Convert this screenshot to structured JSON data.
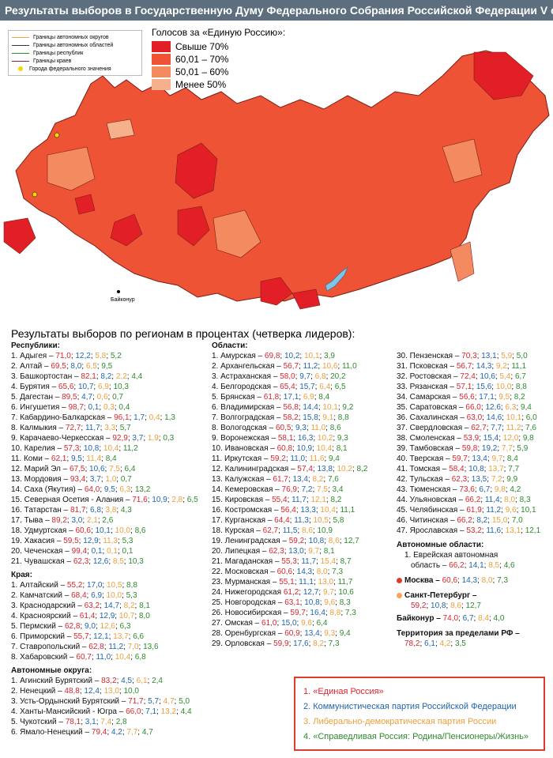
{
  "title": "Результаты выборов в Государственную Думу Федерального Собрания Российской Федерации V созыва",
  "legend_borders": [
    {
      "label": "Границы автономных округов",
      "color": "#f4a04a"
    },
    {
      "label": "Границы автономных областей",
      "color": "#333333"
    },
    {
      "label": "Границы республик",
      "color": "#2e8b2e"
    },
    {
      "label": "Границы краев",
      "color": "#8a2040"
    },
    {
      "label": "Города федерального значения",
      "color": "#f2d70a"
    }
  ],
  "vote_legend": {
    "title": "Голосов за «Единую Россию»:",
    "items": [
      {
        "label": "Свыше 70%",
        "color": "#e21f26"
      },
      {
        "label": "60,01 – 70%",
        "color": "#ee5335"
      },
      {
        "label": "50,01 – 60%",
        "color": "#f48a60"
      },
      {
        "label": "Менее 50%",
        "color": "#f6b08b"
      }
    ]
  },
  "map_labels": {
    "baikonur": "Байконур"
  },
  "results_heading": "Результаты выборов по регионам в процентах (четверка лидеров):",
  "republics": {
    "header": "Республики:",
    "rows": [
      {
        "name": "1. Адыгея –",
        "v": [
          "71,0",
          "12,2",
          "5,8",
          "5,2"
        ]
      },
      {
        "name": "2. Алтай –",
        "v": [
          "69,5",
          "8,0",
          "6,5",
          "9,5"
        ]
      },
      {
        "name": "3. Башкортостан –",
        "v": [
          "82,1",
          "8,2",
          "2,2",
          "4,4"
        ]
      },
      {
        "name": "4. Бурятия –",
        "v": [
          "65,6",
          "10,7",
          "6,9",
          "10,3"
        ]
      },
      {
        "name": "5. Дагестан –",
        "v": [
          "89,5",
          "4,7",
          "0,6",
          "0,7"
        ]
      },
      {
        "name": "6. Ингушетия –",
        "v": [
          "98,7",
          "0,1",
          "0,3",
          "0,4"
        ]
      },
      {
        "name": "7. Кабардино-Балкарская –",
        "v": [
          "96,1",
          "1,7",
          "0,4",
          "1,3"
        ]
      },
      {
        "name": "8. Калмыкия –",
        "v": [
          "72,7",
          "11,7",
          "3,3",
          "5,7"
        ]
      },
      {
        "name": "9. Карачаево-Черкесская –",
        "v": [
          "92,9",
          "3,7",
          "1,9",
          "0,3"
        ]
      },
      {
        "name": "10. Карелия –",
        "v": [
          "57,3",
          "10,8",
          "10,4",
          "11,2"
        ]
      },
      {
        "name": "11. Коми –",
        "v": [
          "62,1",
          "9,5",
          "11,4",
          "8,4"
        ]
      },
      {
        "name": "12. Марий Эл –",
        "v": [
          "67,5",
          "10,6",
          "7,5",
          "6,4"
        ]
      },
      {
        "name": "13. Мордовия –",
        "v": [
          "93,4",
          "3,7",
          "1,0",
          "0,7"
        ]
      },
      {
        "name": "14. Саха (Якутия) –",
        "v": [
          "64,0",
          "9,5",
          "6,3",
          "13,2"
        ]
      },
      {
        "name": "15. Северная Осетия - Алания –",
        "v": [
          "71,6",
          "10,9",
          "2,8",
          "6,5"
        ]
      },
      {
        "name": "16. Татарстан –",
        "v": [
          "81,7",
          "6,8",
          "3,8",
          "4,3"
        ]
      },
      {
        "name": "17. Тыва –",
        "v": [
          "89,2",
          "3,0",
          "2,1",
          "2,6"
        ]
      },
      {
        "name": "18. Удмуртская –",
        "v": [
          "60,6",
          "10,1",
          "10,0",
          "8,6"
        ]
      },
      {
        "name": "19. Хакасия –",
        "v": [
          "59,5",
          "12,9",
          "11,3",
          "5,3"
        ]
      },
      {
        "name": "20. Чеченская –",
        "v": [
          "99,4",
          "0,1",
          "0,1",
          "0,1"
        ]
      },
      {
        "name": "21. Чувашская –",
        "v": [
          "62,3",
          "12,6",
          "8,5",
          "10,3"
        ]
      }
    ]
  },
  "krai": {
    "header": "Края:",
    "rows": [
      {
        "name": "1. Алтайский –",
        "v": [
          "55,2",
          "17,0",
          "10,5",
          "8,8"
        ]
      },
      {
        "name": "2. Камчатский –",
        "v": [
          "68,4",
          "6,9",
          "10,0",
          "5,3"
        ]
      },
      {
        "name": "3. Краснодарский –",
        "v": [
          "63,2",
          "14,7",
          "8,2",
          "8,1"
        ]
      },
      {
        "name": "4. Красноярский –",
        "v": [
          "61,4",
          "12,9",
          "10,7",
          "8,0"
        ]
      },
      {
        "name": "5. Пермский –",
        "v": [
          "62,8",
          "9,0",
          "12,6",
          "6,3"
        ]
      },
      {
        "name": "6. Приморский –",
        "v": [
          "55,7",
          "12,1",
          "13,7",
          "6,6"
        ]
      },
      {
        "name": "7. Ставропольский –",
        "v": [
          "62,8",
          "11,2",
          "7,0",
          "13,6"
        ]
      },
      {
        "name": "8. Хабаровский –",
        "v": [
          "60,7",
          "11,0",
          "10,4",
          "6,8"
        ]
      }
    ]
  },
  "okrugs": {
    "header": "Автономные округа:",
    "rows": [
      {
        "name": "1. Агинский Бурятский –",
        "v": [
          "83,2",
          "4,5",
          "6,1",
          "2,4"
        ]
      },
      {
        "name": "2. Ненецкий –",
        "v": [
          "48,8",
          "12,4",
          "13,0",
          "10,0"
        ]
      },
      {
        "name": "3. Усть-Ордынский Бурятский –",
        "v": [
          "71,7",
          "5,7",
          "4,7",
          "5,0"
        ]
      },
      {
        "name": "4. Ханты-Мансийский - Югра –",
        "v": [
          "66,0",
          "7,1",
          "13,2",
          "4,4"
        ]
      },
      {
        "name": "5. Чукотский –",
        "v": [
          "78,1",
          "3,1",
          "7,4",
          "2,8"
        ]
      },
      {
        "name": "6. Ямало-Ненецкий –",
        "v": [
          "79,4",
          "4,2",
          "7,7",
          "4,7"
        ]
      }
    ]
  },
  "oblasts_a": {
    "header": "Области:",
    "rows": [
      {
        "name": "1. Амурская –",
        "v": [
          "69,8",
          "10,2",
          "10,1",
          "3,9"
        ]
      },
      {
        "name": "2. Архангельская –",
        "v": [
          "56,7",
          "11,2",
          "10,6",
          "11,0"
        ]
      },
      {
        "name": "3. Астраханская –",
        "v": [
          "58,0",
          "9,7",
          "6,8",
          "20,2"
        ]
      },
      {
        "name": "4. Белгородская –",
        "v": [
          "65,4",
          "15,7",
          "6,4",
          "6,5"
        ]
      },
      {
        "name": "5. Брянская –",
        "v": [
          "61,8",
          "17,1",
          "6,9",
          "8,4"
        ]
      },
      {
        "name": "6. Владимирская –",
        "v": [
          "56,8",
          "14,4",
          "10,1",
          "9,2"
        ]
      },
      {
        "name": "7. Волгоградская –",
        "v": [
          "58,2",
          "15,8",
          "9,1",
          "8,8"
        ]
      },
      {
        "name": "8. Вологодская –",
        "v": [
          "60,5",
          "9,3",
          "11,0",
          "8,6"
        ]
      },
      {
        "name": "9. Воронежская –",
        "v": [
          "58,1",
          "16,3",
          "10,2",
          "9,3"
        ]
      },
      {
        "name": "10. Ивановская –",
        "v": [
          "60,8",
          "10,9",
          "10,4",
          "8,1"
        ]
      },
      {
        "name": "11. Иркутская –",
        "v": [
          "59,2",
          "11,0",
          "11,6",
          "9,4"
        ]
      },
      {
        "name": "12. Калининградская –",
        "v": [
          "57,4",
          "13,8",
          "10,2",
          "8,2"
        ]
      },
      {
        "name": "13. Калужская –",
        "v": [
          "61,7",
          "13,4",
          "8,2",
          "7,6"
        ]
      },
      {
        "name": "14. Кемеровская –",
        "v": [
          "76,9",
          "7,2",
          "7,5",
          "3,4"
        ]
      },
      {
        "name": "15. Кировская –",
        "v": [
          "55,4",
          "11,7",
          "12,1",
          "8,2"
        ]
      },
      {
        "name": "16. Костромская –",
        "v": [
          "56,4",
          "13,3",
          "10,4",
          "11,1"
        ]
      },
      {
        "name": "17. Курганская –",
        "v": [
          "64,4",
          "11,3",
          "10,5",
          "5,8"
        ]
      },
      {
        "name": "18. Курская –",
        "v": [
          "62,7",
          "11,5",
          "8,6",
          "10,9"
        ]
      },
      {
        "name": "19. Ленинградская –",
        "v": [
          "59,2",
          "10,8",
          "8,6",
          "12,7"
        ]
      },
      {
        "name": "20. Липецкая –",
        "v": [
          "62,3",
          "13,0",
          "9,7",
          "8,1"
        ]
      },
      {
        "name": "21. Магаданская –",
        "v": [
          "55,3",
          "11,7",
          "15,4",
          "8,7"
        ]
      },
      {
        "name": "22. Московская –",
        "v": [
          "60,6",
          "14,3",
          "8,0",
          "7,3"
        ]
      },
      {
        "name": "23. Мурманская –",
        "v": [
          "55,1",
          "11,1",
          "13,0",
          "11,7"
        ]
      },
      {
        "name": "24. Нижегородская",
        "v": [
          "61,2",
          "12,7",
          "9,7",
          "10,6"
        ]
      },
      {
        "name": "25. Новгородская –",
        "v": [
          "63,1",
          "10,8",
          "9,6",
          "8,3"
        ]
      },
      {
        "name": "26. Новосибирская –",
        "v": [
          "59,7",
          "16,4",
          "8,8",
          "7,3"
        ]
      },
      {
        "name": "27. Омская –",
        "v": [
          "61,0",
          "15,0",
          "9,6",
          "6,4"
        ]
      },
      {
        "name": "28. Оренбургская –",
        "v": [
          "60,9",
          "13,4",
          "9,3",
          "9,4"
        ]
      },
      {
        "name": "29. Орловская –",
        "v": [
          "59,9",
          "17,6",
          "8,2",
          "7,3"
        ]
      }
    ]
  },
  "oblasts_b": {
    "rows": [
      {
        "name": "30. Пензенская –",
        "v": [
          "70,3",
          "13,1",
          "5,9",
          "5,0"
        ]
      },
      {
        "name": "31. Псковская –",
        "v": [
          "56,7",
          "14,3",
          "9,2",
          "11,1"
        ]
      },
      {
        "name": "32. Ростовская –",
        "v": [
          "72,4",
          "10,6",
          "5,4",
          "6,7"
        ]
      },
      {
        "name": "33. Рязанская –",
        "v": [
          "57,1",
          "15,6",
          "10,0",
          "8,8"
        ]
      },
      {
        "name": "34. Самарская –",
        "v": [
          "56,6",
          "17,1",
          "9,5",
          "8,2"
        ]
      },
      {
        "name": "35. Саратовская –",
        "v": [
          "66,0",
          "12,6",
          "6,3",
          "9,4"
        ]
      },
      {
        "name": "36. Сахалинская –",
        "v": [
          "63,0",
          "14,6",
          "10,1",
          "6,0"
        ]
      },
      {
        "name": "37. Свердловская –",
        "v": [
          "62,7",
          "7,7",
          "11,2",
          "7,6"
        ]
      },
      {
        "name": "38. Смоленская –",
        "v": [
          "53,9",
          "15,4",
          "12,0",
          "9,8"
        ]
      },
      {
        "name": "39. Тамбовская –",
        "v": [
          "59,8",
          "19,2",
          "7,7",
          "5,9"
        ]
      },
      {
        "name": "40. Тверская –",
        "v": [
          "59,7",
          "13,4",
          "9,7",
          "8,4"
        ]
      },
      {
        "name": "41. Томская –",
        "v": [
          "58,4",
          "10,8",
          "13,7",
          "7,7"
        ]
      },
      {
        "name": "42. Тульская –",
        "v": [
          "62,3",
          "13,5",
          "7,2",
          "9,9"
        ]
      },
      {
        "name": "43. Тюменская –",
        "v": [
          "73,6",
          "6,7",
          "9,8",
          "4,2"
        ]
      },
      {
        "name": "44. Ульяновская –",
        "v": [
          "66,2",
          "11,4",
          "8,0",
          "8,3"
        ]
      },
      {
        "name": "45. Челябинская –",
        "v": [
          "61,9",
          "11,2",
          "9,6",
          "10,1"
        ]
      },
      {
        "name": "46. Читинская –",
        "v": [
          "66,2",
          "8,2",
          "15,0",
          "7,0"
        ]
      },
      {
        "name": "47. Ярославская –",
        "v": [
          "53,2",
          "11,6",
          "13,1",
          "12,1"
        ]
      }
    ]
  },
  "auto_oblast": {
    "header": "Автономные области:",
    "line1": "1. Еврейская автономная",
    "name": "область –",
    "v": [
      "66,2",
      "14,1",
      "8,5",
      "4,6"
    ]
  },
  "moscow": {
    "name": "Москва –",
    "v": [
      "60,6",
      "14,3",
      "8,0",
      "7,3"
    ]
  },
  "spb": {
    "name": "Санкт-Петербург –",
    "v": [
      "59,2",
      "10,8",
      "8,6",
      "12,7"
    ]
  },
  "baikonur": {
    "name": "Байконур –",
    "v": [
      "74,0",
      "6,7",
      "8,4",
      "4,0"
    ]
  },
  "abroad": {
    "name": "Территория за пределами РФ –",
    "v": [
      "78,2",
      "6,1",
      "4,2",
      "3,5"
    ]
  },
  "parties": [
    "1. «Единая Россия»",
    "2. Коммунистическая партия Российской Федерации",
    "3. Либерально-демократическая партия России",
    "4. «Справедливая Россия: Родина/Пенсионеры/Жизнь»"
  ],
  "colors": {
    "party1": "#d8262e",
    "party2": "#1f64b0",
    "party3": "#ee9e3a",
    "party4": "#2e8b2e"
  }
}
